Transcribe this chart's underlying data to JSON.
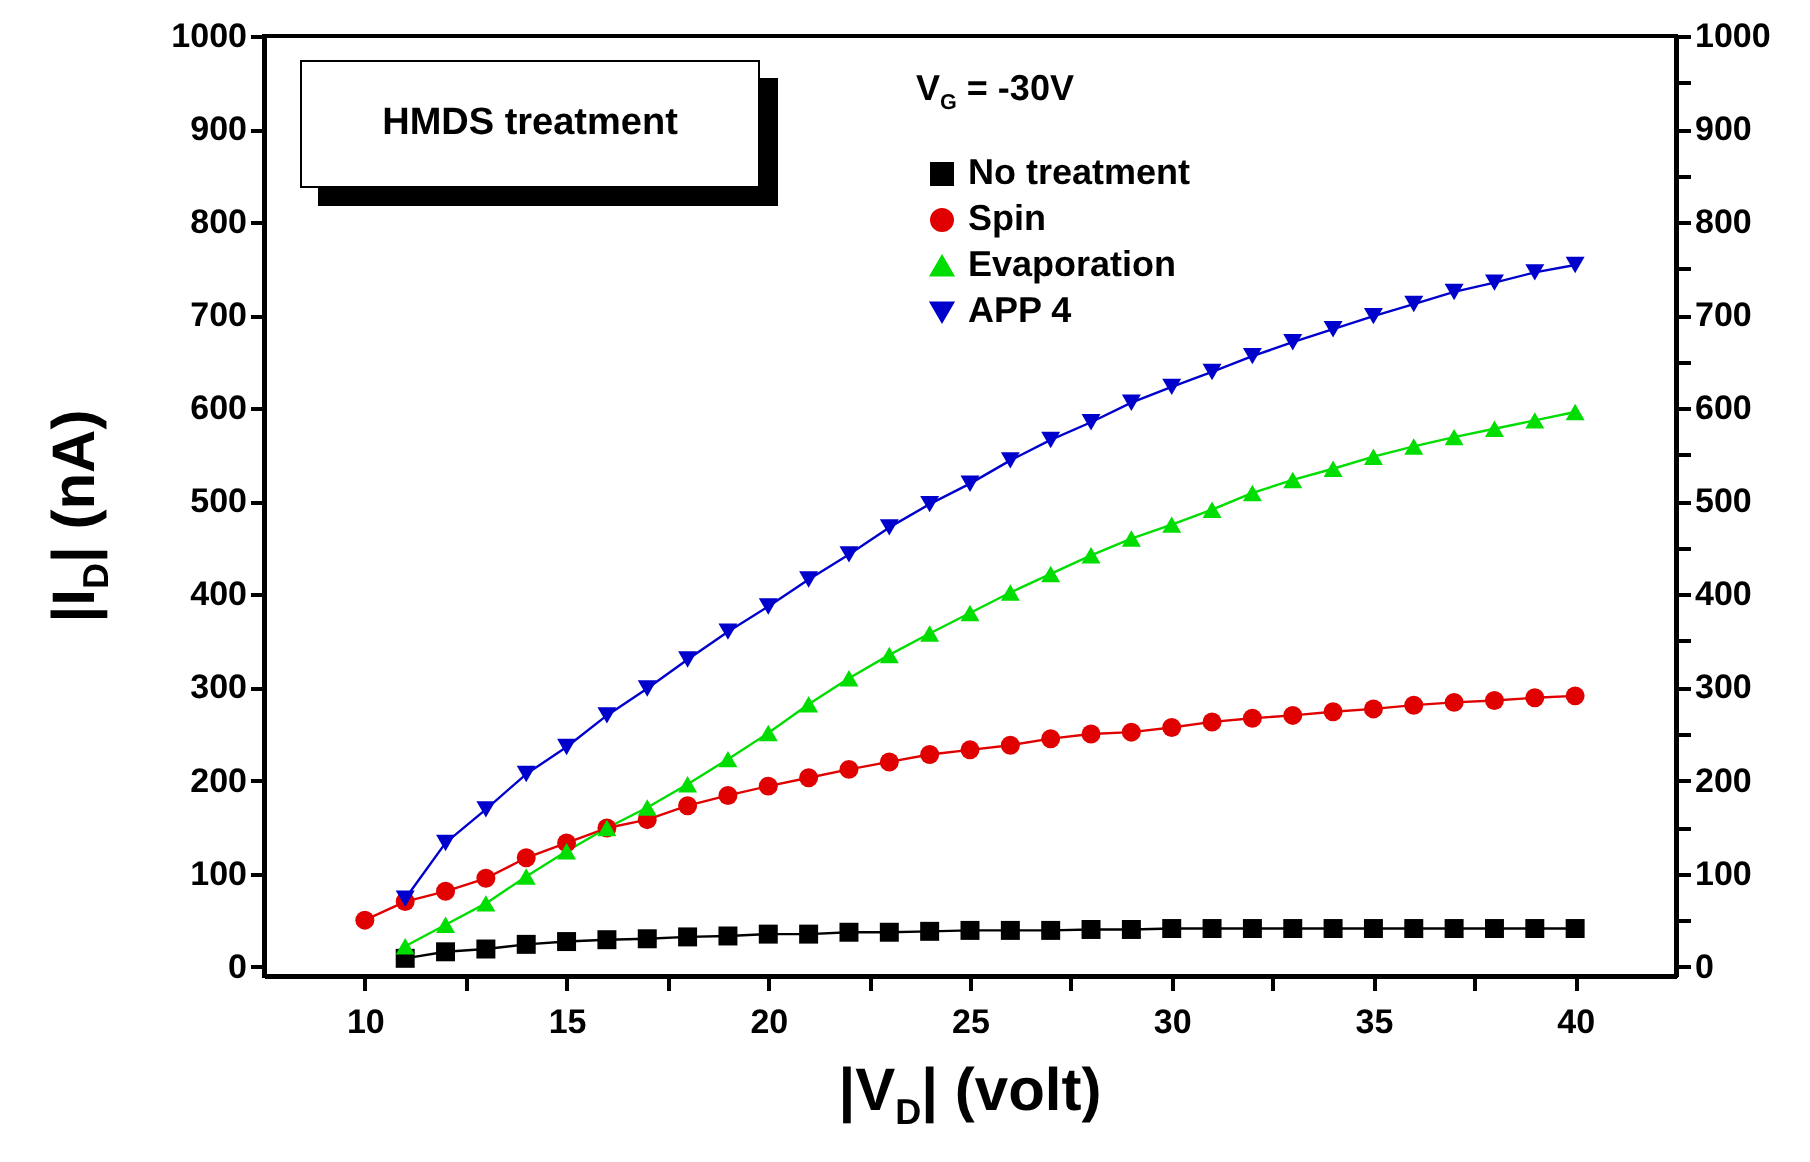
{
  "chart_data": {
    "type": "line",
    "xlabel": "|V$_{D}$| (volt)",
    "ylabel": "|I$_{D}$| (nA)",
    "legend_title": "V$_{G}$ = -30V",
    "annotations": [
      "HMDS treatment"
    ],
    "x": [
      10,
      11,
      12,
      13,
      14,
      15,
      16,
      17,
      18,
      19,
      20,
      21,
      22,
      23,
      24,
      25,
      26,
      27,
      28,
      29,
      30,
      31,
      32,
      33,
      34,
      35,
      36,
      37,
      38,
      39,
      40
    ],
    "series": [
      {
        "name": "No treatment",
        "color": "#000000",
        "marker": "square",
        "values": [
          null,
          9,
          16,
          19,
          24,
          27,
          29,
          30,
          32,
          33,
          35,
          35,
          37,
          37,
          38,
          39,
          39,
          39,
          40,
          40,
          41,
          41,
          41,
          41,
          41,
          41,
          41,
          41,
          41,
          41,
          41
        ]
      },
      {
        "name": "Spin",
        "color": "#e00000",
        "marker": "circle",
        "values": [
          50,
          70,
          81,
          95,
          117,
          133,
          149,
          158,
          173,
          184,
          194,
          203,
          212,
          220,
          228,
          233,
          238,
          245,
          250,
          252,
          257,
          263,
          267,
          270,
          274,
          277,
          281,
          284,
          286,
          289,
          291
        ]
      },
      {
        "name": "Evaporation",
        "color": "#00dd00",
        "marker": "triangle",
        "values": [
          null,
          22,
          45,
          68,
          97,
          124,
          149,
          171,
          196,
          223,
          251,
          282,
          310,
          335,
          358,
          380,
          402,
          422,
          442,
          460,
          475,
          491,
          509,
          523,
          535,
          548,
          559,
          569,
          578,
          587,
          596
        ]
      },
      {
        "name": "APP 4",
        "color": "#0000cc",
        "marker": "triangle-down",
        "values": [
          null,
          73,
          133,
          169,
          207,
          236,
          270,
          299,
          330,
          360,
          387,
          416,
          443,
          472,
          497,
          519,
          544,
          566,
          585,
          606,
          623,
          639,
          656,
          671,
          685,
          699,
          712,
          725,
          735,
          746,
          754
        ]
      }
    ],
    "xlim": [
      7.5,
      42.5
    ],
    "xticks": [
      10,
      {
        "value": 12.5,
        "label": null
      },
      15,
      {
        "value": 17.5,
        "label": null
      },
      20,
      {
        "value": 22.5,
        "label": null
      },
      25,
      {
        "value": 27.5,
        "label": null
      },
      30,
      {
        "value": 32.5,
        "label": null
      },
      35,
      {
        "value": 37.5,
        "label": null
      },
      40
    ],
    "ylim": [
      -10,
      1000
    ],
    "yticks": [
      0,
      {
        "value": 50,
        "label": null
      },
      100,
      {
        "value": 150,
        "label": null
      },
      200,
      {
        "value": 250,
        "label": null
      },
      300,
      {
        "value": 350,
        "label": null
      },
      400,
      {
        "value": 450,
        "label": null
      },
      500,
      {
        "value": 550,
        "label": null
      },
      600,
      {
        "value": 650,
        "label": null
      },
      700,
      {
        "value": 750,
        "label": null
      },
      800,
      {
        "value": 850,
        "label": null
      },
      900,
      {
        "value": 950,
        "label": null
      },
      1000
    ],
    "y2lim": [
      -10,
      1000
    ],
    "y2ticks": [
      0,
      {
        "value": 50,
        "label": null
      },
      100,
      {
        "value": 150,
        "label": null
      },
      200,
      {
        "value": 250,
        "label": null
      },
      300,
      {
        "value": 350,
        "label": null
      },
      400,
      {
        "value": 450,
        "label": null
      },
      500,
      {
        "value": 550,
        "label": null
      },
      600,
      {
        "value": 650,
        "label": null
      },
      700,
      {
        "value": 750,
        "label": null
      },
      800,
      {
        "value": 850,
        "label": null
      },
      900,
      {
        "value": 950,
        "label": null
      },
      1000
    ],
    "grid": false,
    "legend": "top right",
    "line_style": "solid"
  }
}
